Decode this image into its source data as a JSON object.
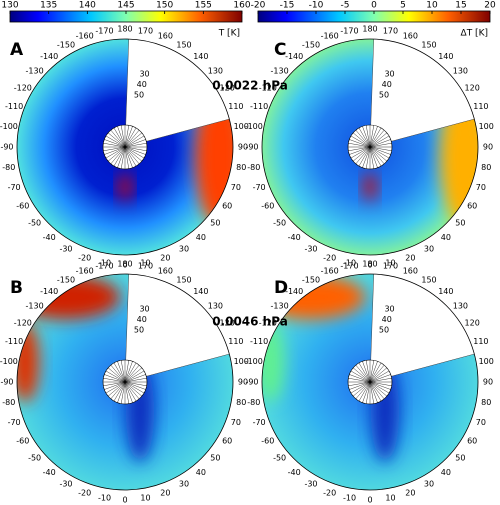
{
  "colorbars": [
    {
      "label": "T [K]",
      "range": [
        130,
        160
      ],
      "ticks": [
        130,
        135,
        140,
        145,
        150,
        155,
        160
      ]
    },
    {
      "label": "ΔT [K]",
      "range": [
        -20,
        20
      ],
      "ticks": [
        -20,
        -15,
        -10,
        -5,
        0,
        5,
        10,
        15,
        20
      ]
    }
  ],
  "panels": [
    {
      "letter": "A"
    },
    {
      "letter": "B"
    },
    {
      "letter": "C"
    },
    {
      "letter": "D"
    }
  ],
  "pressure_levels": [
    "0.0022 hPa",
    "0.0046 hPa"
  ],
  "longitude_labels": [
    -170,
    -160,
    -150,
    -140,
    -130,
    -120,
    -110,
    -100,
    -90,
    -80,
    -70,
    -60,
    -50,
    -40,
    -30,
    -20,
    -10,
    0,
    10,
    20,
    30,
    40,
    50,
    60,
    70,
    80,
    90,
    100,
    110,
    120,
    130,
    140,
    150,
    160,
    170,
    180
  ],
  "latitude_labels": [
    30,
    40,
    50
  ]
}
